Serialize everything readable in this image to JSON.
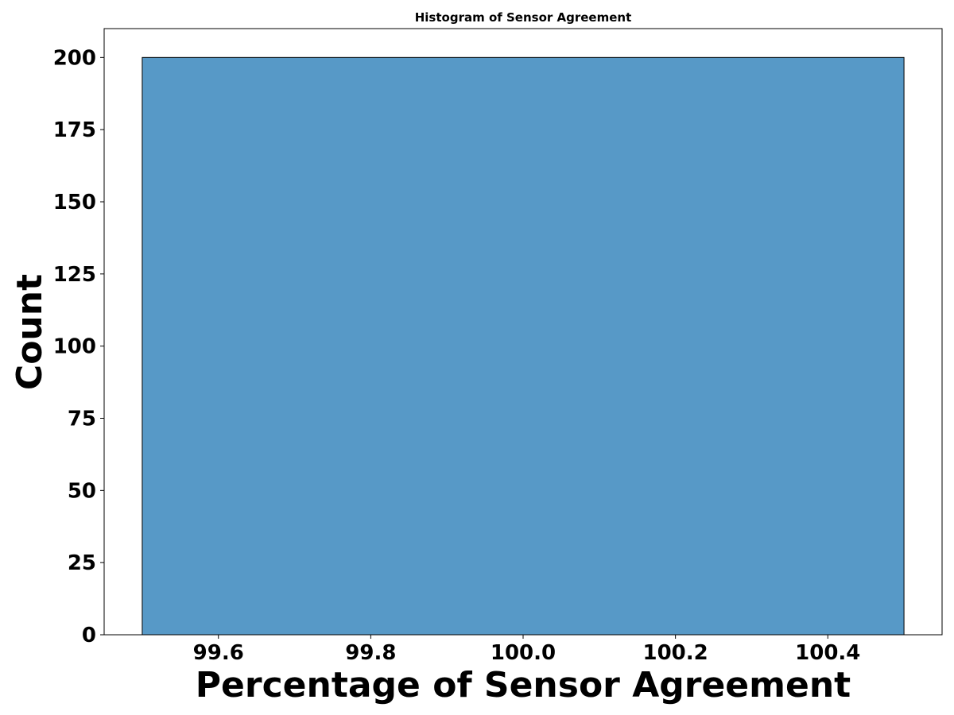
{
  "chart_data": {
    "type": "bar",
    "title": "Histogram of Sensor Agreement",
    "xlabel": "Percentage of Sensor Agreement",
    "ylabel": "Count",
    "bins": [
      {
        "start": 99.5,
        "end": 100.5,
        "count": 200
      }
    ],
    "xlim": [
      99.45,
      100.55
    ],
    "ylim": [
      0,
      210
    ],
    "xticks": [
      99.6,
      99.8,
      100.0,
      100.2,
      100.4
    ],
    "xtick_labels": [
      "99.6",
      "99.8",
      "100.0",
      "100.2",
      "100.4"
    ],
    "yticks": [
      0,
      25,
      50,
      75,
      100,
      125,
      150,
      175,
      200
    ],
    "ytick_labels": [
      "0",
      "25",
      "50",
      "75",
      "100",
      "125",
      "150",
      "175",
      "200"
    ],
    "grid": false,
    "bar_color": "#5799c7",
    "edge_color": "#000000"
  }
}
